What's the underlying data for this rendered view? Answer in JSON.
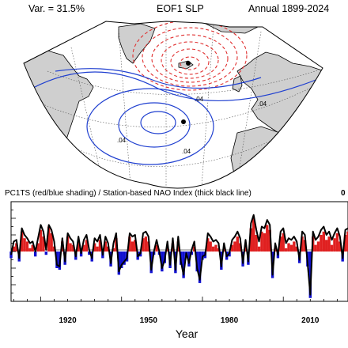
{
  "header": {
    "variance": "Var. = 31.5%",
    "title": "EOF1 SLP",
    "period": "Annual 1899-2024"
  },
  "map": {
    "contour_labels": [
      ".04",
      ".04",
      ".04",
      ".04"
    ],
    "colors": {
      "land": "#cfcfcf",
      "negative": "#e03030",
      "positive": "#2040d0",
      "coast": "#000000"
    }
  },
  "timeseries": {
    "title": "PC1TS (red/blue shading) / Station-based NAO Index (thick black line)",
    "corner": "0"
  },
  "chart_data": {
    "type": "area",
    "title": "PC1TS (red/blue shading) / Station-based NAO Index (thick black line)",
    "xlabel": "Year",
    "ylabel": "",
    "xlim": [
      1899,
      2024
    ],
    "ylim": [
      -3,
      3
    ],
    "xticks": [
      "1920",
      "1950",
      "1980",
      "2010"
    ],
    "xtick_values": [
      1920,
      1950,
      1980,
      2010
    ],
    "series": [
      {
        "type": "area",
        "pos_color": "#e02020",
        "neg_color": "#1010d0",
        "x": [
          1899,
          1900,
          1901,
          1902,
          1903,
          1904,
          1905,
          1906,
          1907,
          1908,
          1909,
          1910,
          1911,
          1912,
          1913,
          1914,
          1915,
          1916,
          1917,
          1918,
          1919,
          1920,
          1921,
          1922,
          1923,
          1924,
          1925,
          1926,
          1927,
          1928,
          1929,
          1930,
          1931,
          1932,
          1933,
          1934,
          1935,
          1936,
          1937,
          1938,
          1939,
          1940,
          1941,
          1942,
          1943,
          1944,
          1945,
          1946,
          1947,
          1948,
          1949,
          1950,
          1951,
          1952,
          1953,
          1954,
          1955,
          1956,
          1957,
          1958,
          1959,
          1960,
          1961,
          1962,
          1963,
          1964,
          1965,
          1966,
          1967,
          1968,
          1969,
          1970,
          1971,
          1972,
          1973,
          1974,
          1975,
          1976,
          1977,
          1978,
          1979,
          1980,
          1981,
          1982,
          1983,
          1984,
          1985,
          1986,
          1987,
          1988,
          1989,
          1990,
          1991,
          1992,
          1993,
          1994,
          1995,
          1996,
          1997,
          1998,
          1999,
          2000,
          2001,
          2002,
          2003,
          2004,
          2005,
          2006,
          2007,
          2008,
          2009,
          2010,
          2011,
          2012,
          2013,
          2014,
          2015,
          2016,
          2017,
          2018,
          2019,
          2020,
          2021,
          2022,
          2023,
          2024
        ],
        "values": [
          -0.4,
          0.3,
          0.5,
          -0.6,
          1.2,
          0.8,
          0.6,
          0.2,
          0.4,
          -0.3,
          0.5,
          1.3,
          0.9,
          -0.2,
          1.5,
          1.1,
          0.3,
          -1.0,
          -1.1,
          0.6,
          -0.8,
          0.9,
          0.5,
          0.4,
          -0.5,
          0.6,
          -0.3,
          0.4,
          0.7,
          -0.2,
          -0.6,
          0.5,
          0.3,
          0.7,
          -0.4,
          0.6,
          0.3,
          -0.9,
          0.2,
          0.8,
          -1.4,
          -1.0,
          -0.8,
          -0.6,
          0.9,
          0.6,
          0.7,
          -0.5,
          -0.3,
          0.8,
          0.9,
          0.6,
          -1.3,
          -0.2,
          0.4,
          -0.2,
          -1.2,
          -0.7,
          0.3,
          -1.0,
          0.5,
          -1.3,
          0.6,
          -0.8,
          -1.6,
          -0.3,
          -0.9,
          -0.2,
          0.3,
          -1.2,
          -1.9,
          -0.5,
          -0.4,
          0.8,
          0.6,
          0.3,
          0.4,
          0.2,
          -1.1,
          0.2,
          -0.5,
          -0.3,
          0.4,
          0.6,
          0.9,
          0.5,
          -0.9,
          0.4,
          -0.8,
          1.4,
          2.0,
          1.0,
          0.3,
          1.2,
          1.1,
          1.6,
          1.3,
          -1.6,
          0.2,
          -0.4,
          0.9,
          1.1,
          0.2,
          0.5,
          0.4,
          0.6,
          0.3,
          -0.7,
          0.9,
          0.7,
          -0.9,
          -2.8,
          0.9,
          0.4,
          0.6,
          1.0,
          1.2,
          0.7,
          0.9,
          0.4,
          0.8,
          1.1,
          0.6,
          -0.6,
          1.0,
          1.2
        ]
      },
      {
        "type": "line",
        "color": "#000000",
        "values": [
          -0.2,
          0.6,
          0.7,
          -0.4,
          1.4,
          1.0,
          0.8,
          0.5,
          0.6,
          0.0,
          0.8,
          1.6,
          1.2,
          0.1,
          1.6,
          1.3,
          0.6,
          -0.8,
          -0.9,
          0.8,
          -0.6,
          1.1,
          0.8,
          0.6,
          -0.3,
          0.9,
          -0.1,
          0.7,
          1.0,
          0.1,
          -0.4,
          0.8,
          0.6,
          1.0,
          -0.2,
          0.9,
          0.5,
          -0.7,
          0.5,
          1.1,
          -1.2,
          -0.8,
          -0.6,
          -0.4,
          1.1,
          0.9,
          1.0,
          -0.3,
          -0.1,
          1.1,
          1.2,
          0.9,
          -1.1,
          0.0,
          0.7,
          0.0,
          -1.0,
          -0.5,
          0.6,
          -0.8,
          0.8,
          -1.1,
          0.9,
          -0.6,
          -1.4,
          -0.1,
          -0.7,
          0.1,
          0.6,
          -1.0,
          -1.7,
          -0.3,
          -0.2,
          1.1,
          0.9,
          0.6,
          0.7,
          0.5,
          -0.9,
          0.5,
          -0.3,
          -0.1,
          0.7,
          0.9,
          1.2,
          0.8,
          -0.7,
          0.7,
          -0.6,
          1.7,
          2.2,
          1.3,
          0.6,
          1.5,
          1.4,
          1.9,
          1.6,
          -1.4,
          0.5,
          -0.2,
          1.2,
          1.4,
          0.5,
          0.8,
          0.7,
          0.9,
          0.6,
          -0.5,
          1.2,
          1.0,
          -0.7,
          -2.6,
          1.2,
          0.7,
          0.9,
          1.3,
          1.5,
          1.0,
          1.2,
          0.7,
          1.1,
          1.4,
          0.9,
          -0.4,
          1.3,
          1.4
        ]
      }
    ]
  }
}
